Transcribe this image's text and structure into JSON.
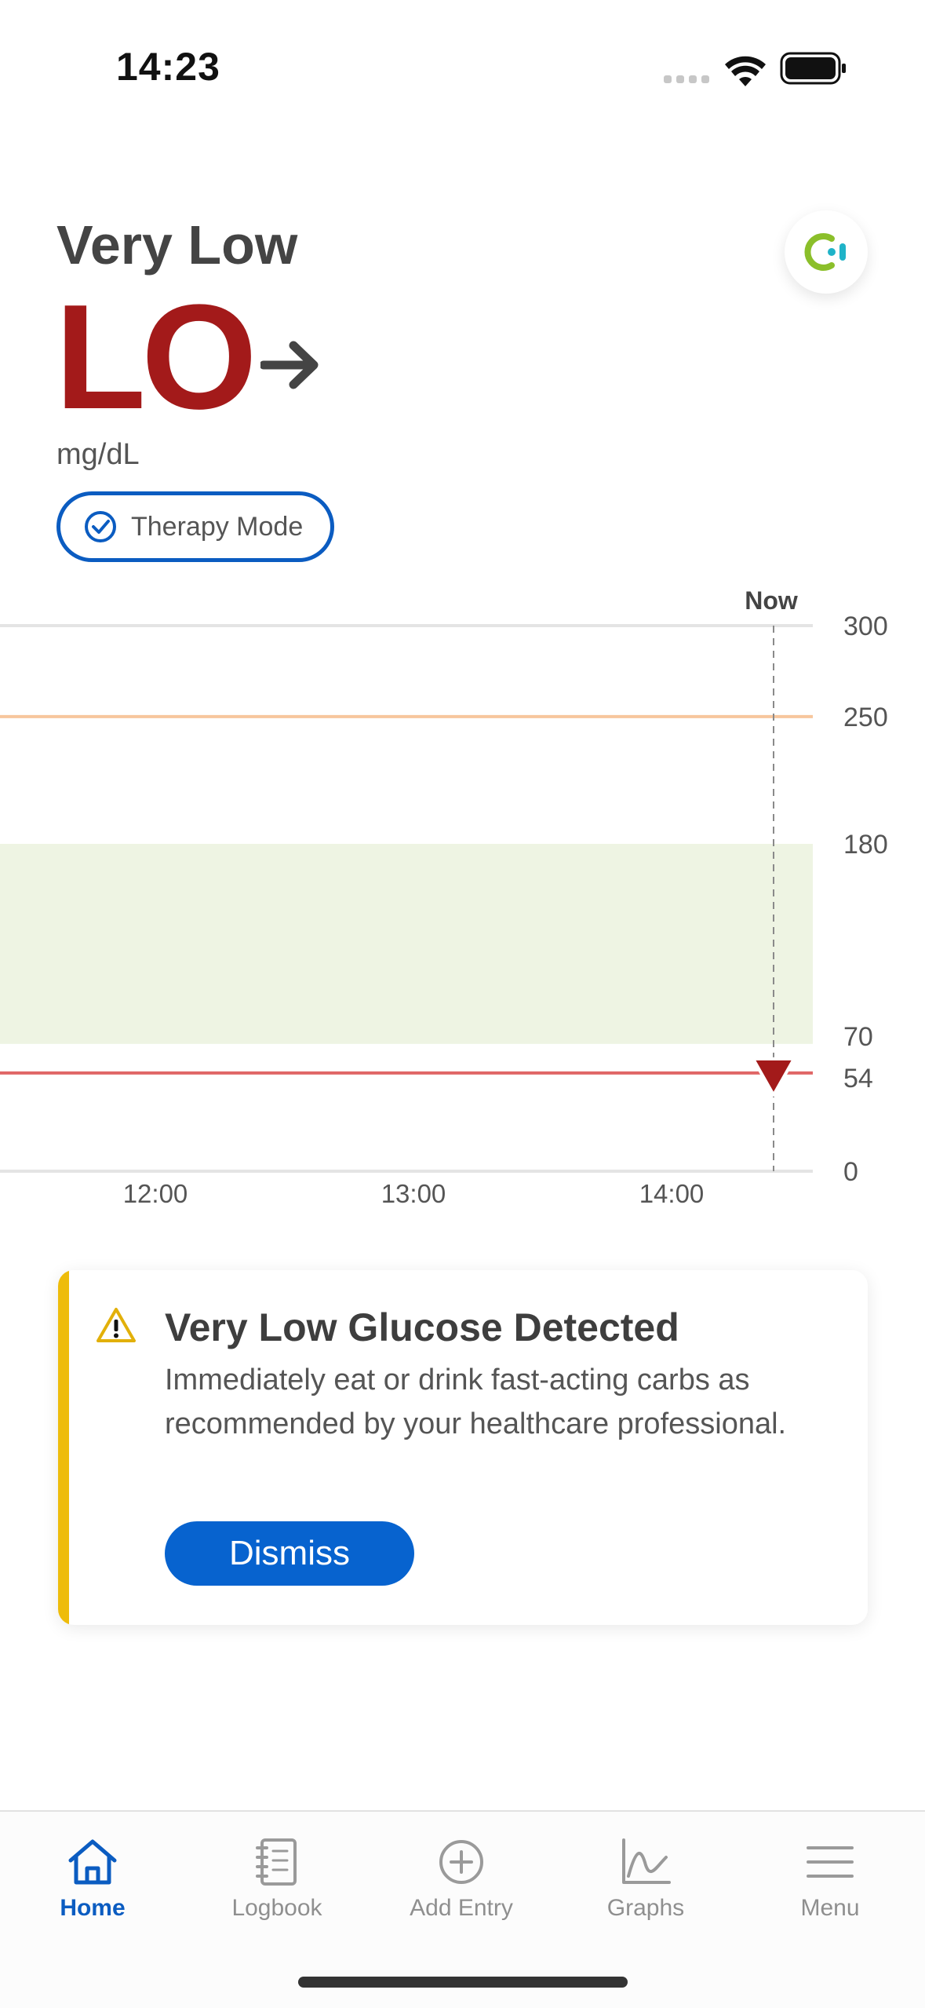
{
  "status_bar": {
    "time": "14:23"
  },
  "header": {
    "glucose_state": "Very Low",
    "glucose_value": "LO",
    "unit": "mg/dL",
    "therapy_mode_label": "Therapy Mode",
    "trend_icon": "arrow-right-icon",
    "logo_icon": "app-logo-icon"
  },
  "chart_data": {
    "type": "line",
    "now_label": "Now",
    "y_ticks": [
      300,
      250,
      180,
      70,
      54,
      0
    ],
    "x_ticks": [
      "12:00",
      "13:00",
      "14:00"
    ],
    "ylim": [
      0,
      300
    ],
    "target_range": [
      70,
      180
    ],
    "high_threshold": 250,
    "low_threshold": 54,
    "current_marker": {
      "value": "LO"
    },
    "colors": {
      "target_band": "#eef4e3",
      "high_line": "#f7c69d",
      "low_line": "#e06666",
      "marker": "#a31a1a"
    }
  },
  "alert": {
    "title": "Very Low Glucose Detected",
    "body": "Immediately eat or drink fast-acting carbs as recommended by your healthcare professional.",
    "dismiss_label": "Dismiss",
    "icon": "warning-icon",
    "accent_color": "#eebc0b"
  },
  "tabbar": {
    "items": [
      {
        "label": "Home",
        "icon": "home-icon",
        "active": true
      },
      {
        "label": "Logbook",
        "icon": "logbook-icon",
        "active": false
      },
      {
        "label": "Add Entry",
        "icon": "add-entry-icon",
        "active": false
      },
      {
        "label": "Graphs",
        "icon": "graphs-icon",
        "active": false
      },
      {
        "label": "Menu",
        "icon": "menu-icon",
        "active": false
      }
    ]
  }
}
